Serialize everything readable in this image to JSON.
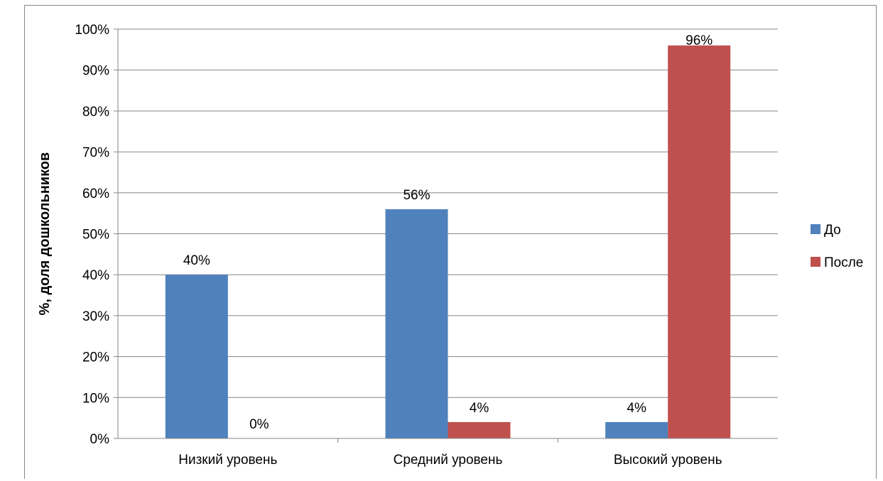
{
  "chart_data": {
    "type": "bar",
    "categories": [
      "Низкий уровень",
      "Средний уровень",
      "Высокий уровень"
    ],
    "series": [
      {
        "name": "До",
        "color": "#4F81BD",
        "values": [
          40,
          56,
          4
        ],
        "labels": [
          "40%",
          "56%",
          "4%"
        ]
      },
      {
        "name": "После",
        "color": "#C0504D",
        "values": [
          0,
          4,
          96
        ],
        "labels": [
          "0%",
          "4%",
          "96%"
        ]
      }
    ],
    "ylabel": "%, доля дошкольников",
    "ylim": [
      0,
      100
    ],
    "yticks": [
      0,
      10,
      20,
      30,
      40,
      50,
      60,
      70,
      80,
      90,
      100
    ],
    "ytick_labels": [
      "0%",
      "10%",
      "20%",
      "30%",
      "40%",
      "50%",
      "60%",
      "70%",
      "80%",
      "90%",
      "100%"
    ],
    "grid": true,
    "legend_position": "right"
  }
}
